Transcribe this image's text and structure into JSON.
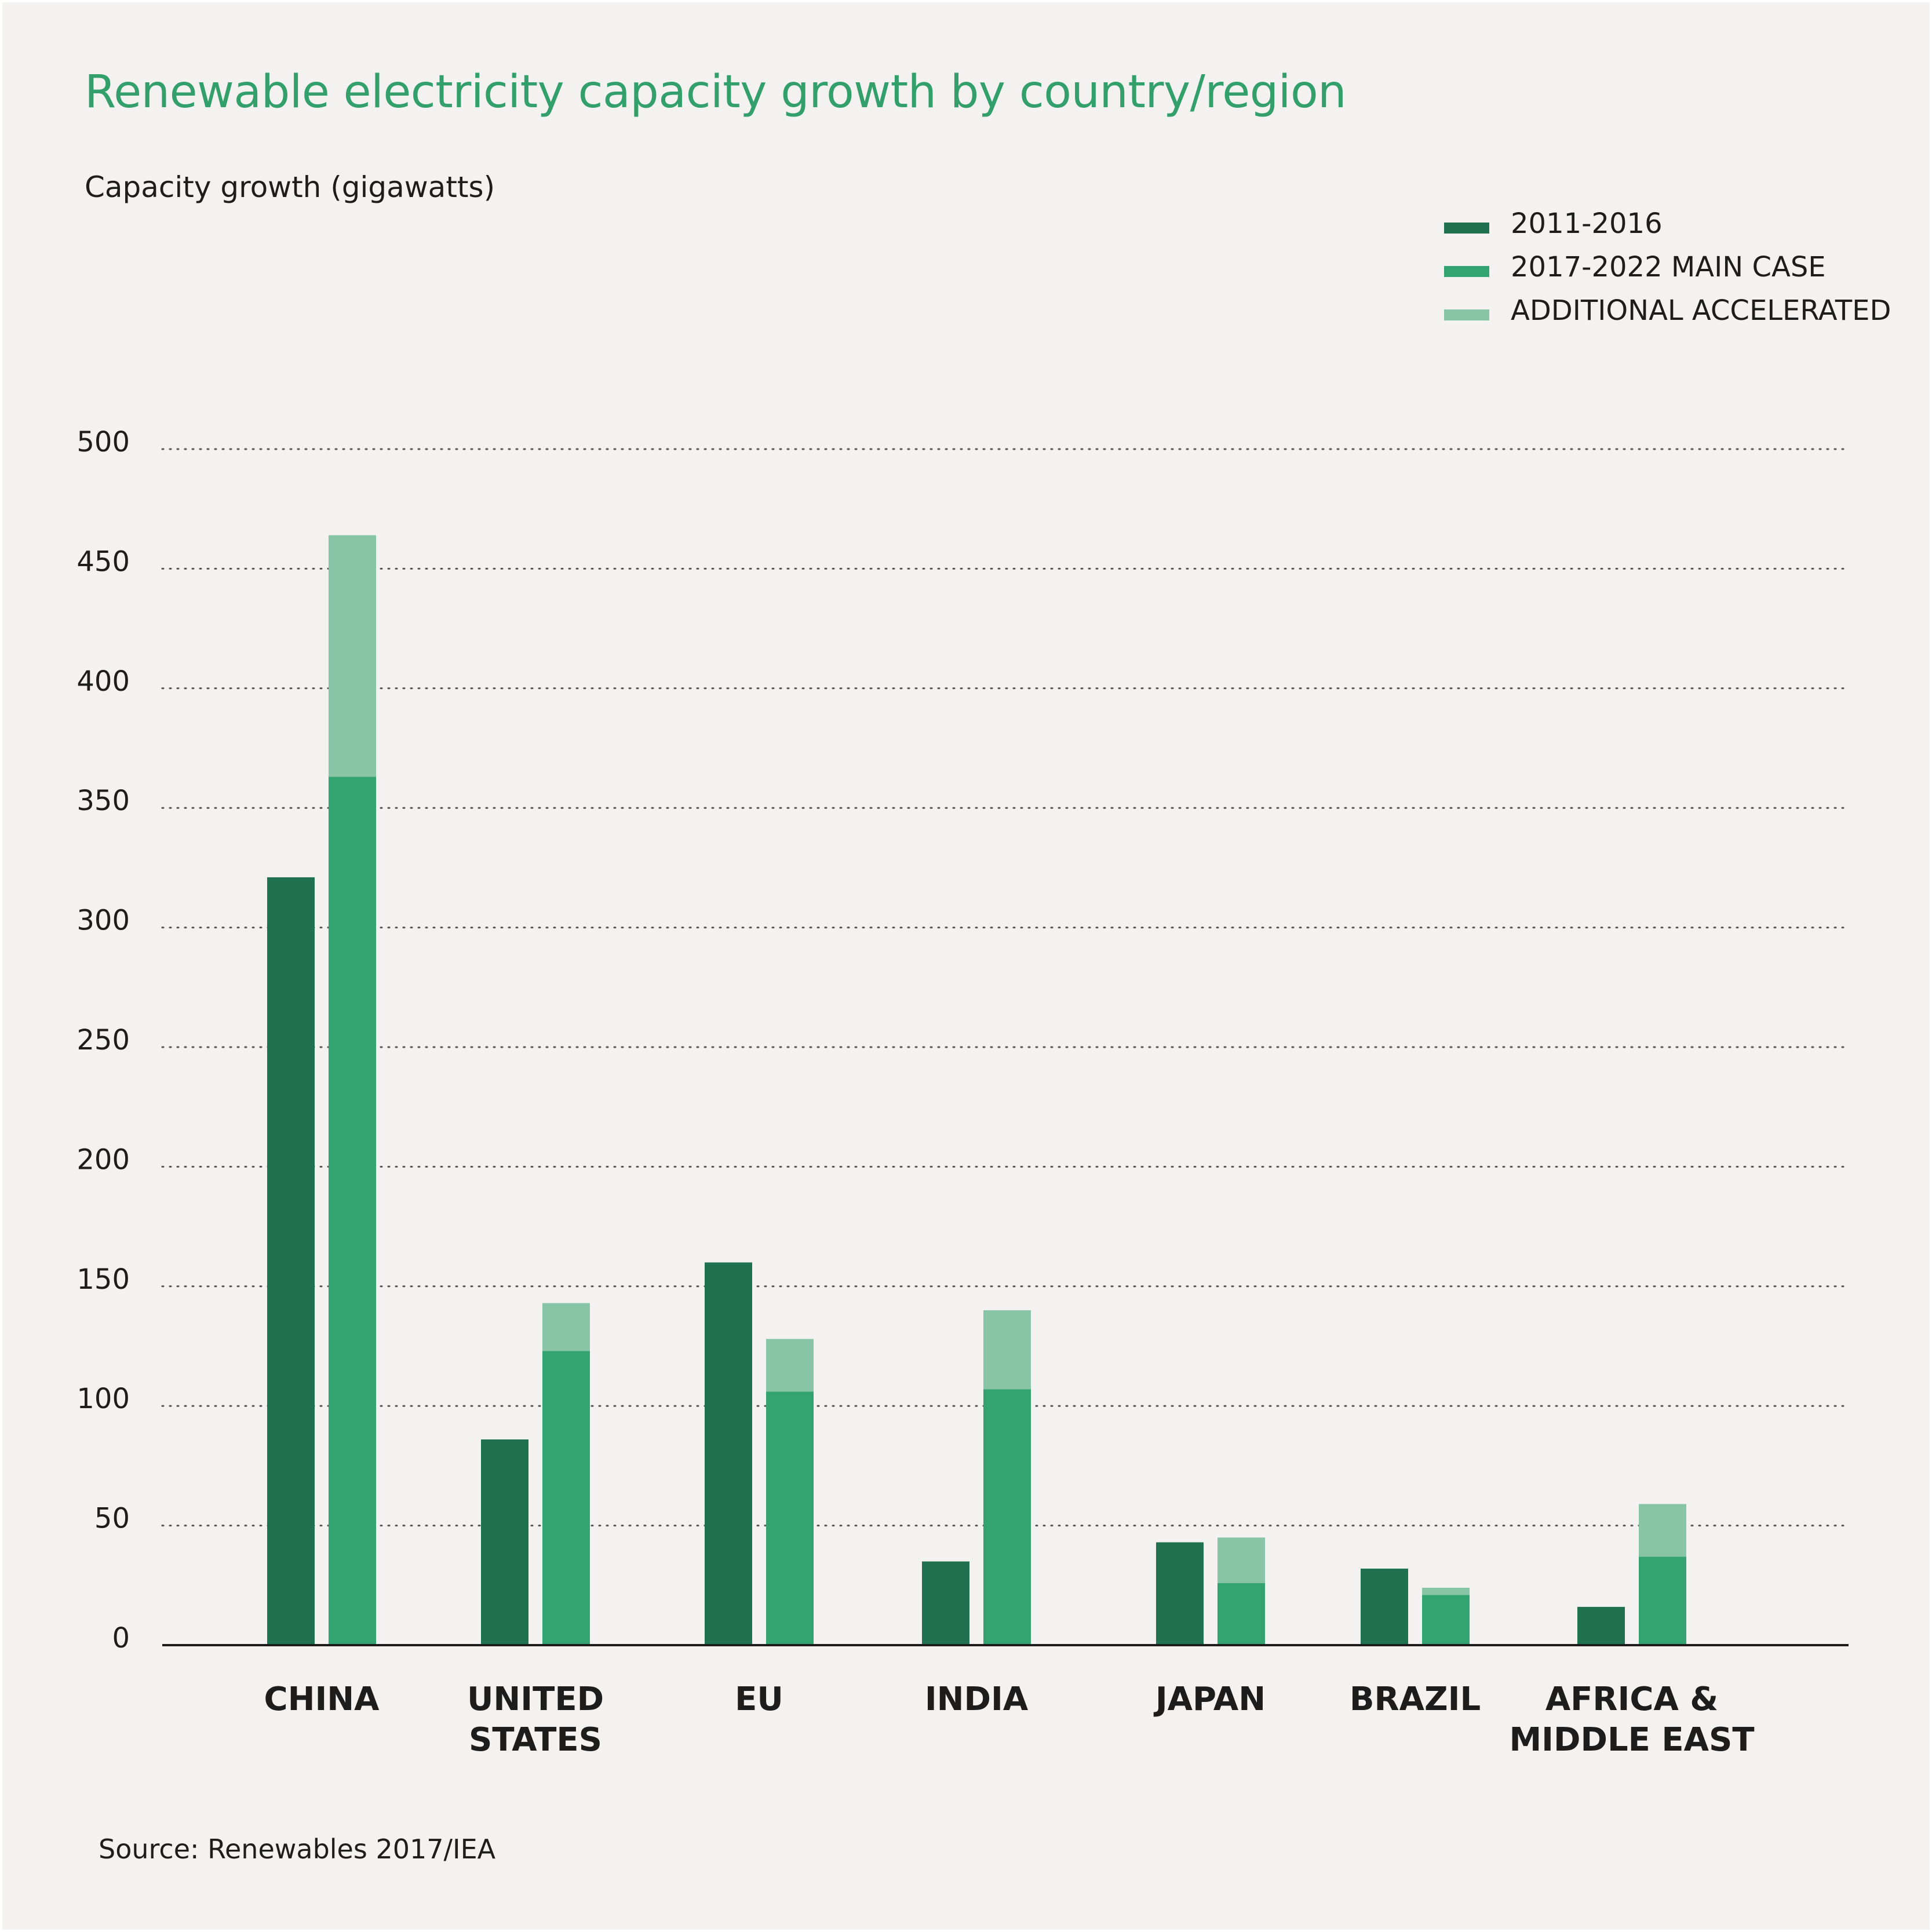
{
  "colors": {
    "background": "#f3f2f0",
    "title": "#33a06c",
    "series_2011_2016": "#20714f",
    "series_2017_2022": "#33a36f",
    "series_additional": "#88c5a7",
    "text": "#1d1d1d"
  },
  "chart_data": {
    "type": "bar",
    "stacked_second_bar": true,
    "title": "Renewable electricity capacity growth by country/region",
    "ylabel": "Capacity growth (gigawatts)",
    "xlabel": "",
    "ylim": [
      0,
      500
    ],
    "yticks": [
      0,
      50,
      100,
      150,
      200,
      250,
      300,
      350,
      400,
      450,
      500
    ],
    "grid": true,
    "legend_position": "top-right",
    "categories": [
      [
        "CHINA"
      ],
      [
        "UNITED",
        "STATES"
      ],
      [
        "EU"
      ],
      [
        "INDIA"
      ],
      [
        "JAPAN"
      ],
      [
        "BRAZIL"
      ],
      [
        "AFRICA &",
        "MIDDLE EAST"
      ]
    ],
    "series": [
      {
        "name": "2011-2016",
        "values": [
          321,
          86,
          160,
          35,
          43,
          32,
          16
        ]
      },
      {
        "name": "2017-2022 MAIN CASE",
        "values": [
          363,
          123,
          106,
          107,
          26,
          21,
          37
        ]
      },
      {
        "name": "ADDITIONAL ACCELERATED",
        "values": [
          101,
          20,
          22,
          33,
          19,
          3,
          22
        ]
      }
    ],
    "source": "Source: Renewables 2017/IEA"
  }
}
